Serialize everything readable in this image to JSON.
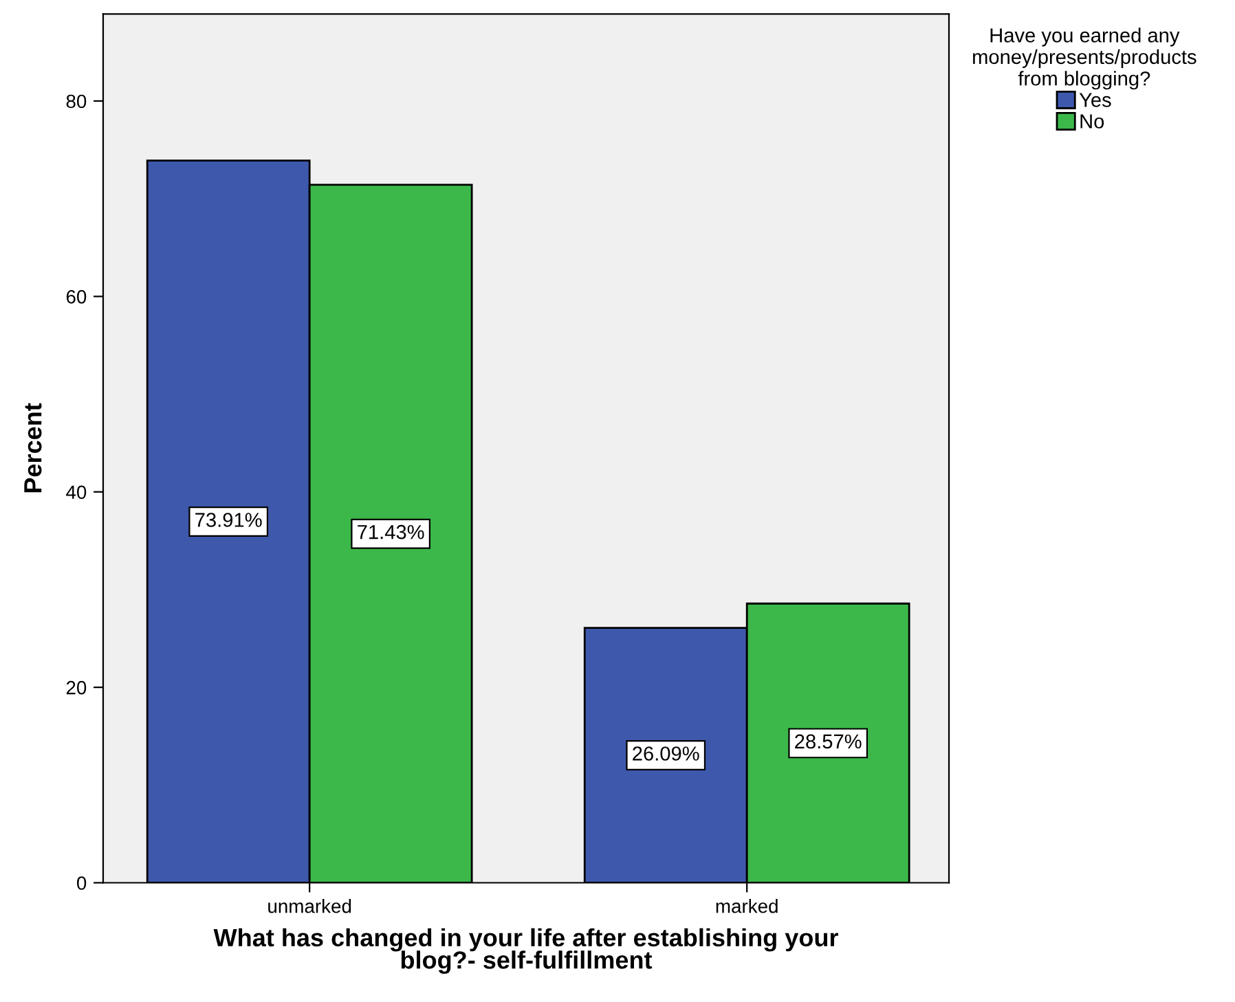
{
  "chart_data": {
    "type": "bar",
    "xlabel": "What has changed in your life after establishing your\nblog?- self-fulfillment",
    "ylabel": "Percent",
    "legend_title": "Have you earned any\nmoney/presents/products\nfrom blogging?",
    "categories": [
      "unmarked",
      "marked"
    ],
    "series": [
      {
        "name": "Yes",
        "color": "#3e58ac",
        "values": [
          73.91,
          26.09
        ],
        "value_labels": [
          "73.91%",
          "26.09%"
        ]
      },
      {
        "name": "No",
        "color": "#3cb84a",
        "values": [
          71.43,
          28.57
        ],
        "value_labels": [
          "71.43%",
          "28.57%"
        ]
      }
    ],
    "ylim": [
      0,
      88.9
    ],
    "yticks": [
      0,
      20,
      40,
      60,
      80
    ],
    "grid": false,
    "legend": "top right"
  }
}
